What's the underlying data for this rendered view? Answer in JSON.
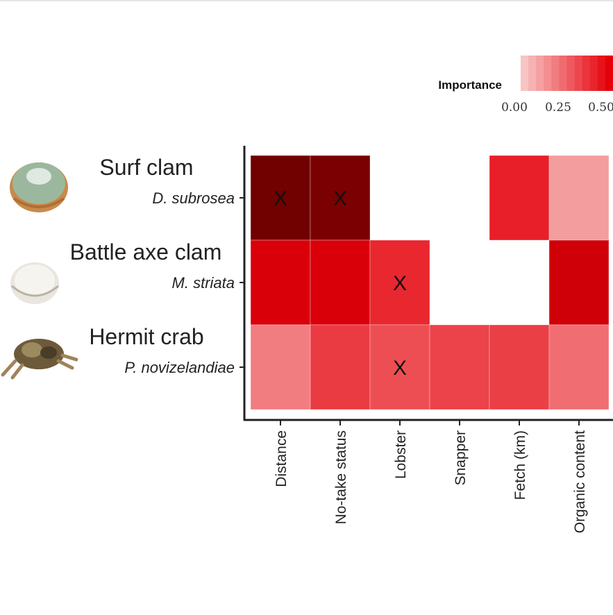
{
  "chart_data": {
    "type": "heatmap",
    "rows": [
      {
        "common_name": "Surf clam",
        "species": "D. subrosea"
      },
      {
        "common_name": "Battle axe clam",
        "species": "M. striata"
      },
      {
        "common_name": "Hermit crab",
        "species": "P. novizelandiae"
      }
    ],
    "columns": [
      "Distance",
      "No-take status",
      "Lobster",
      "Snapper",
      "Fetch (km)",
      "Organic content"
    ],
    "values": [
      [
        0.72,
        0.7,
        null,
        null,
        0.42,
        0.1
      ],
      [
        0.52,
        0.52,
        0.4,
        null,
        null,
        0.54
      ],
      [
        0.18,
        0.35,
        0.3,
        0.33,
        0.34,
        0.22
      ]
    ],
    "marked": [
      [
        true,
        true,
        false,
        false,
        false,
        false
      ],
      [
        false,
        false,
        true,
        false,
        false,
        false
      ],
      [
        false,
        false,
        true,
        false,
        false,
        false
      ]
    ],
    "mark_symbol": "X",
    "legend": {
      "title": "Importance",
      "ticks": [
        "0.00",
        "0.25",
        "0.50"
      ],
      "range": [
        0,
        0.5
      ],
      "placement": "top-right"
    },
    "colors": {
      "low": "#f8c4c4",
      "high": "#e5000a",
      "dark": "#6e0000"
    },
    "grid": false
  }
}
